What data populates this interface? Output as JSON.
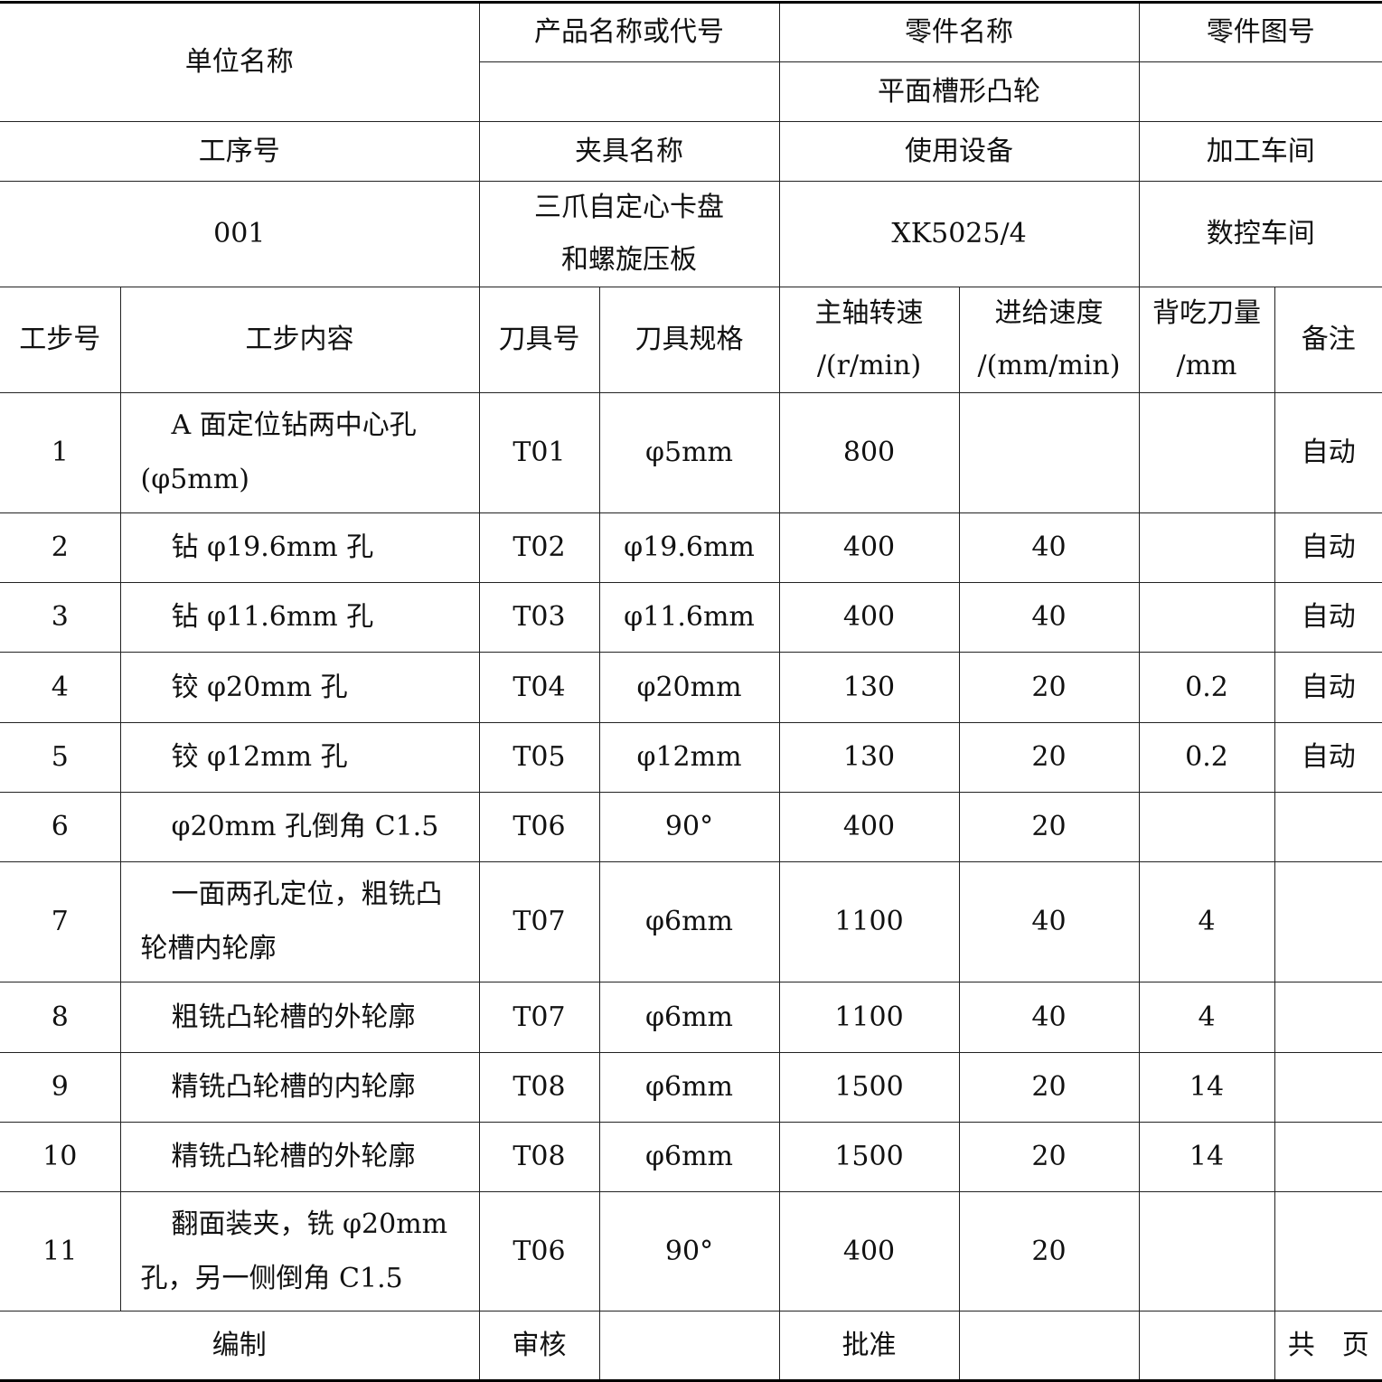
{
  "header": {
    "unit_name_label": "单位名称",
    "product_label": "产品名称或代号",
    "part_name_label": "零件名称",
    "part_drawing_label": "零件图号",
    "product_value": "",
    "part_name_value": "平面槽形凸轮",
    "part_drawing_value": "",
    "process_no_label": "工序号",
    "fixture_label": "夹具名称",
    "equipment_label": "使用设备",
    "workshop_label": "加工车间",
    "process_no_value": "001",
    "fixture_value": "三爪自定心卡盘\n和螺旋压板",
    "equipment_value": "XK5025/4",
    "workshop_value": "数控车间"
  },
  "columns": [
    "工步号",
    "工步内容",
    "刀具号",
    "刀具规格",
    "主轴转速\n/(r/min)",
    "进给速度\n/(mm/min)",
    "背吃刀量\n/mm",
    "备注"
  ],
  "steps": [
    [
      "1",
      "A 面定位钻两中心孔(φ5mm)",
      "T01",
      "φ5mm",
      "800",
      "",
      "",
      "自动"
    ],
    [
      "2",
      "钻 φ19.6mm 孔",
      "T02",
      "φ19.6mm",
      "400",
      "40",
      "",
      "自动"
    ],
    [
      "3",
      "钻 φ11.6mm 孔",
      "T03",
      "φ11.6mm",
      "400",
      "40",
      "",
      "自动"
    ],
    [
      "4",
      "铰 φ20mm 孔",
      "T04",
      "φ20mm",
      "130",
      "20",
      "0.2",
      "自动"
    ],
    [
      "5",
      "铰 φ12mm 孔",
      "T05",
      "φ12mm",
      "130",
      "20",
      "0.2",
      "自动"
    ],
    [
      "6",
      "φ20mm 孔倒角 C1.5",
      "T06",
      "90°",
      "400",
      "20",
      "",
      ""
    ],
    [
      "7",
      "一面两孔定位，粗铣凸轮槽内轮廓",
      "T07",
      "φ6mm",
      "1100",
      "40",
      "4",
      ""
    ],
    [
      "8",
      "粗铣凸轮槽的外轮廓",
      "T07",
      "φ6mm",
      "1100",
      "40",
      "4",
      ""
    ],
    [
      "9",
      "精铣凸轮槽的内轮廓",
      "T08",
      "φ6mm",
      "1500",
      "20",
      "14",
      ""
    ],
    [
      "10",
      "精铣凸轮槽的外轮廓",
      "T08",
      "φ6mm",
      "1500",
      "20",
      "14",
      ""
    ],
    [
      "11",
      "翻面装夹，铣 φ20mm 孔，另一侧倒角 C1.5",
      "T06",
      "90°",
      "400",
      "20",
      "",
      ""
    ]
  ],
  "footer": {
    "prepared_label": "编制",
    "reviewed_label": "审核",
    "approved_label": "批准",
    "pages_label": "共　页"
  }
}
